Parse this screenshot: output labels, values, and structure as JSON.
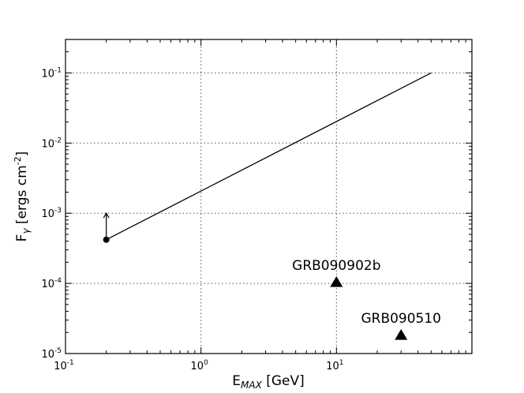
{
  "chart_data": {
    "type": "line",
    "xscale": "log",
    "yscale": "log",
    "xlim": [
      0.1,
      100
    ],
    "ylim": [
      1e-05,
      0.3
    ],
    "grid": true,
    "xlabel_main": "E",
    "xlabel_sub": "MAX",
    "xlabel_unit": " [GeV]",
    "ylabel_main": "F",
    "ylabel_sub": "γ",
    "ylabel_unit": " [ergs cm",
    "ylabel_exp": "-2",
    "ylabel_close": "]",
    "xticks": [
      {
        "value": 0.1,
        "base": "10",
        "exp": "-1"
      },
      {
        "value": 1,
        "base": "10",
        "exp": "0"
      },
      {
        "value": 10,
        "base": "10",
        "exp": "1"
      }
    ],
    "yticks": [
      {
        "value": 0.1,
        "base": "10",
        "exp": "-1"
      },
      {
        "value": 0.01,
        "base": "10",
        "exp": "-2"
      },
      {
        "value": 0.001,
        "base": "10",
        "exp": "-3"
      },
      {
        "value": 0.0001,
        "base": "10",
        "exp": "-4"
      },
      {
        "value": 1e-05,
        "base": "10",
        "exp": "-5"
      }
    ],
    "line": {
      "x": [
        0.2,
        50
      ],
      "y": [
        0.00042,
        0.1
      ],
      "color": "#000000"
    },
    "lower_limit_point": {
      "x": 0.2,
      "y": 0.00042,
      "arrow_to_y": 0.001
    },
    "markers": [
      {
        "label": "GRB090902b",
        "x": 10,
        "y": 0.000105
      },
      {
        "label": "GRB090510",
        "x": 30,
        "y": 1.85e-05
      }
    ]
  }
}
